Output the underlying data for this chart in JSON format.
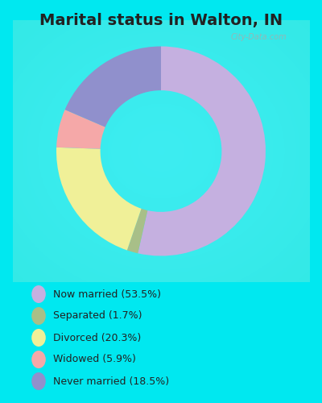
{
  "title": "Marital status in Walton, IN",
  "title_fontsize": 14,
  "bg_cyan": "#00e8f0",
  "bg_chart_colors": [
    "#e8f5e8",
    "#d0ead8",
    "#c8e8d5"
  ],
  "slices": [
    53.5,
    1.7,
    20.3,
    5.9,
    18.5
  ],
  "colors": [
    "#c5b0e0",
    "#a8bf88",
    "#f0f098",
    "#f5a8a8",
    "#9090cc"
  ],
  "labels": [
    "Now married (53.5%)",
    "Separated (1.7%)",
    "Divorced (20.3%)",
    "Widowed (5.9%)",
    "Never married (18.5%)"
  ],
  "legend_colors": [
    "#c5b0e0",
    "#a8bf88",
    "#f0f098",
    "#f5a8a8",
    "#9090cc"
  ],
  "startangle": 90,
  "donut_width": 0.42,
  "title_color": "#222222",
  "label_color": "#222222",
  "watermark": "City-Data.com",
  "watermark_color": "#aaaaaa"
}
